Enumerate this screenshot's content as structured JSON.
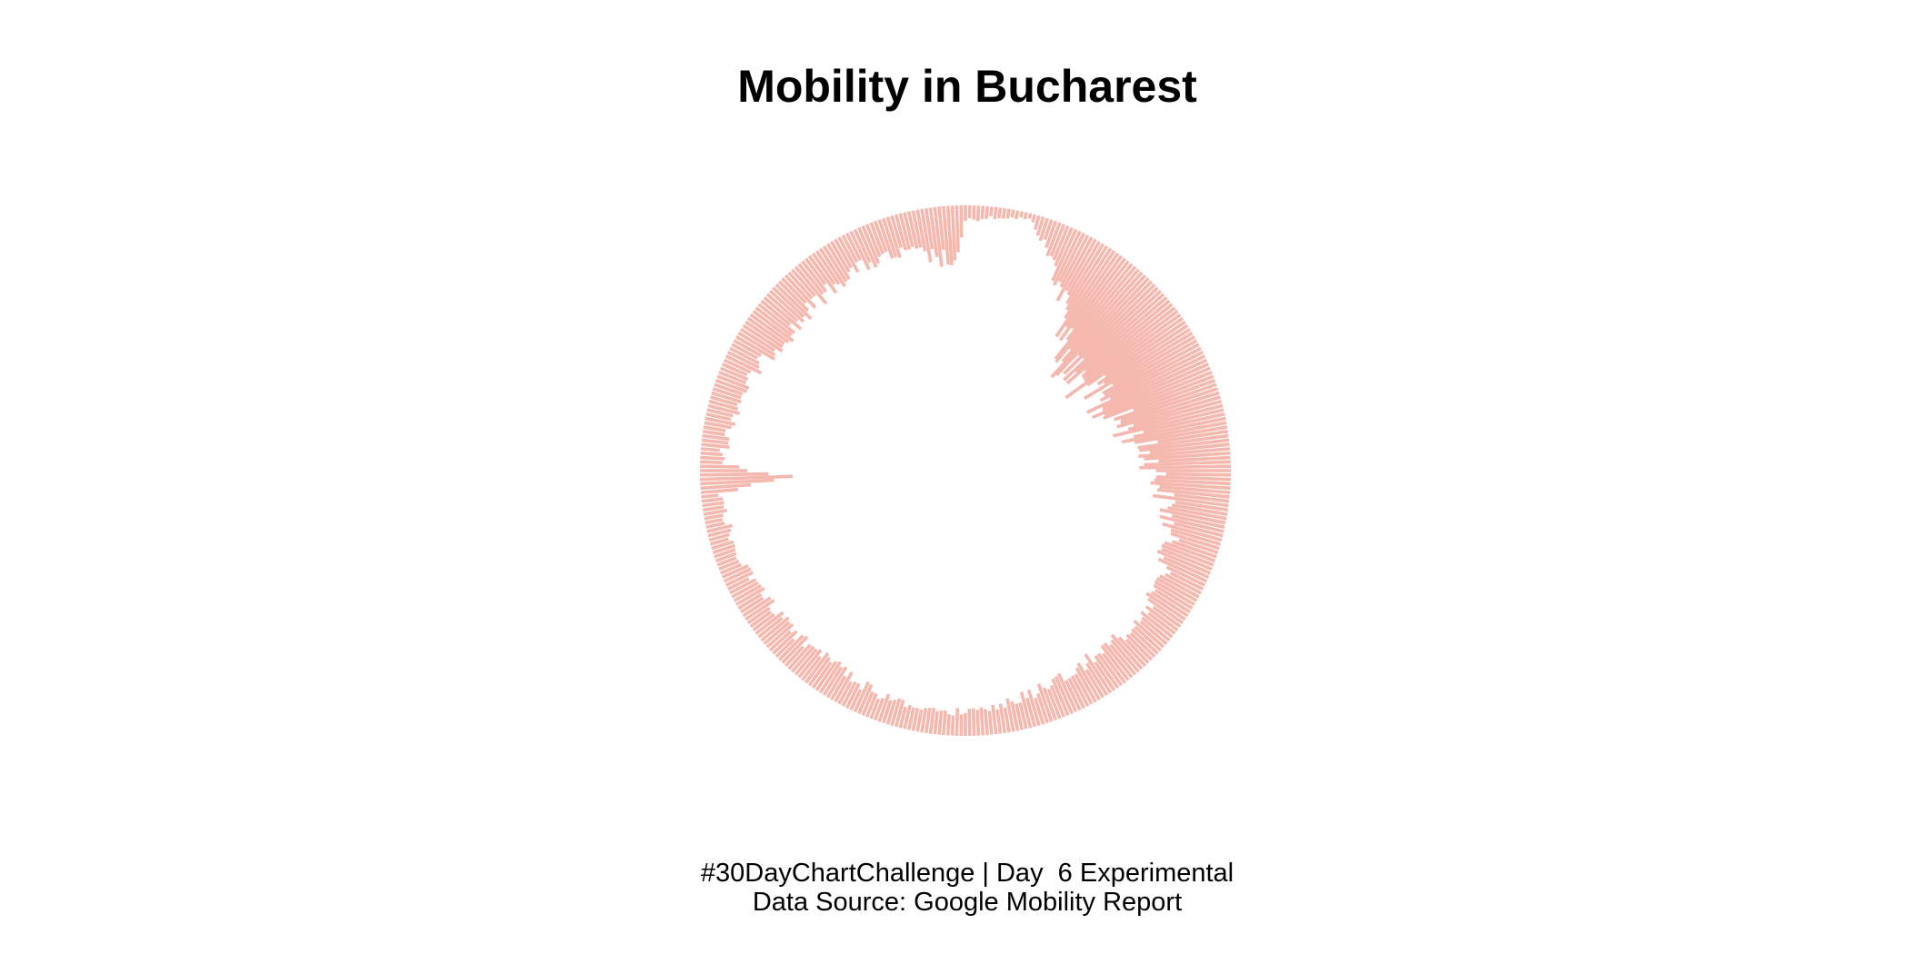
{
  "chart_data": {
    "type": "bar",
    "subtype": "polar-radial",
    "title": "Mobility in Bucharest",
    "caption_lines": [
      "#30DayChartChallenge | Day  6 Experimental",
      "Data Source: Google Mobility Report"
    ],
    "xlabel": "",
    "ylabel": "",
    "grid": false,
    "legend": "none",
    "bar_color": "#f4b8ae",
    "direction": "clockwise-from-top",
    "profile_note_values_are_estimates": true,
    "profile": [
      {
        "pos": 0.0,
        "value": 10
      },
      {
        "pos": 0.04,
        "value": 4
      },
      {
        "pos": 0.08,
        "value": 45
      },
      {
        "pos": 0.12,
        "value": 85
      },
      {
        "pos": 0.18,
        "value": 80
      },
      {
        "pos": 0.24,
        "value": 55
      },
      {
        "pos": 0.3,
        "value": 35
      },
      {
        "pos": 0.36,
        "value": 25
      },
      {
        "pos": 0.42,
        "value": 28
      },
      {
        "pos": 0.48,
        "value": 18
      },
      {
        "pos": 0.54,
        "value": 16
      },
      {
        "pos": 0.6,
        "value": 22
      },
      {
        "pos": 0.66,
        "value": 20
      },
      {
        "pos": 0.7,
        "value": 16
      },
      {
        "pos": 0.735,
        "value": 14
      },
      {
        "pos": 0.745,
        "value": 62
      },
      {
        "pos": 0.755,
        "value": 15
      },
      {
        "pos": 0.8,
        "value": 20
      },
      {
        "pos": 0.86,
        "value": 30
      },
      {
        "pos": 0.92,
        "value": 25
      },
      {
        "pos": 0.96,
        "value": 28
      },
      {
        "pos": 0.995,
        "value": 40
      },
      {
        "pos": 1.0,
        "value": 10
      }
    ],
    "bar_count": 380,
    "ylim": [
      0,
      100
    ]
  }
}
